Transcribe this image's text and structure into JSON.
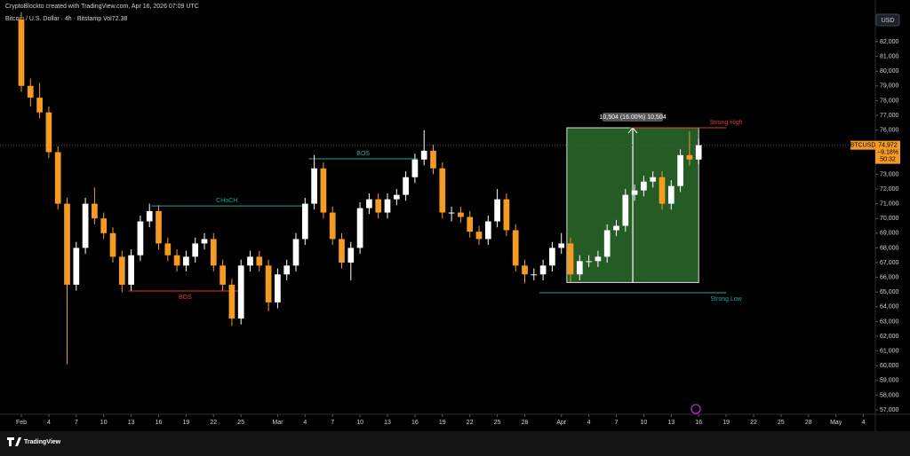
{
  "header": "CryptoBlockto created with TradingView.com, Apr 16, 2026 07:09 UTC",
  "footer_logo": "TradingView",
  "chart_data": {
    "type": "candlestick",
    "title": "Bitcoin / U.S. Dollar · 4h · Bitstamp",
    "subtitle": "Vol72.38",
    "currency": "USD",
    "up_color": "#ffffff",
    "down_color": "#f59a23",
    "grid": false,
    "x": [
      0,
      1,
      2,
      3,
      4,
      5,
      6,
      7,
      8,
      9,
      10,
      11,
      12,
      13,
      14,
      15,
      16,
      17,
      18,
      19,
      20,
      21,
      22,
      23,
      24,
      25,
      26,
      27,
      28,
      29,
      30,
      31,
      32,
      33,
      34,
      35,
      36,
      37,
      38,
      39,
      40,
      41,
      42,
      43,
      44,
      45,
      46,
      47,
      48,
      49,
      50,
      51,
      52,
      53,
      54,
      55,
      56,
      57,
      58,
      59,
      60,
      61,
      62,
      63,
      64,
      65,
      66,
      67,
      68,
      69,
      70,
      71,
      72,
      73,
      74
    ],
    "open": [
      83500,
      79000,
      78200,
      77200,
      74500,
      71000,
      65500,
      68000,
      71000,
      70000,
      69000,
      67400,
      65500,
      67500,
      69800,
      70500,
      68300,
      67500,
      66800,
      67400,
      68300,
      68600,
      66800,
      65500,
      63200,
      66800,
      67400,
      66800,
      64300,
      66200,
      66800,
      68600,
      71000,
      73400,
      70400,
      68600,
      67000,
      68000,
      70700,
      71300,
      70400,
      71300,
      71600,
      72800,
      74000,
      74600,
      73400,
      70400,
      70400,
      70100,
      69100,
      68600,
      69800,
      71300,
      69200,
      66800,
      66200,
      66200,
      66800,
      68000,
      68300,
      66200,
      67100,
      67100,
      67400,
      69200,
      69500,
      71600,
      71900,
      72500,
      72800,
      71000,
      72200,
      74300,
      74000
    ],
    "high": [
      84000,
      79500,
      79200,
      77600,
      74900,
      71400,
      68400,
      71400,
      72100,
      70400,
      69400,
      67800,
      67900,
      70200,
      71000,
      70900,
      68700,
      67900,
      67800,
      68700,
      69000,
      69000,
      67200,
      65900,
      67200,
      67800,
      67800,
      67200,
      66600,
      67200,
      69000,
      71400,
      74300,
      73800,
      70800,
      69000,
      68400,
      71100,
      71700,
      71700,
      71700,
      72000,
      73200,
      74400,
      76000,
      75000,
      73800,
      70800,
      70800,
      70500,
      69500,
      70200,
      72000,
      71700,
      69600,
      67200,
      66600,
      67200,
      68400,
      69000,
      68700,
      67500,
      67500,
      67800,
      69600,
      69900,
      72000,
      72300,
      72900,
      73200,
      73200,
      72600,
      74700,
      75900,
      75400
    ],
    "low": [
      78600,
      77600,
      76800,
      74100,
      70600,
      60100,
      65100,
      67600,
      69600,
      68600,
      67000,
      65000,
      65100,
      67100,
      69400,
      67900,
      67100,
      66400,
      66400,
      67000,
      67900,
      66400,
      65100,
      62700,
      62800,
      66400,
      66400,
      63700,
      63900,
      65800,
      66400,
      68200,
      70600,
      70000,
      68200,
      66600,
      65800,
      67600,
      70300,
      70000,
      70000,
      70900,
      71200,
      72400,
      73600,
      73000,
      70000,
      69800,
      69700,
      68700,
      68200,
      68200,
      69400,
      68800,
      66400,
      65600,
      65800,
      65800,
      66400,
      67600,
      65700,
      65800,
      66700,
      66700,
      67000,
      68800,
      69100,
      71200,
      71500,
      72100,
      70600,
      70600,
      71800,
      73600,
      73700
    ],
    "close": [
      79000,
      78200,
      77200,
      74500,
      71000,
      65500,
      68000,
      71000,
      70000,
      69000,
      67400,
      65500,
      67500,
      69800,
      70500,
      68300,
      67500,
      66800,
      67400,
      68300,
      68600,
      66800,
      65500,
      63200,
      66800,
      67400,
      66800,
      64300,
      66200,
      66800,
      68600,
      71000,
      73400,
      70400,
      68600,
      67000,
      68000,
      70700,
      71300,
      70400,
      71300,
      71600,
      72800,
      74000,
      74600,
      73400,
      70400,
      70400,
      70100,
      69100,
      68600,
      69800,
      71300,
      69200,
      66800,
      66200,
      66200,
      66800,
      68000,
      68300,
      66200,
      67100,
      67100,
      67400,
      69200,
      69500,
      71600,
      71900,
      72500,
      72800,
      71000,
      72200,
      74300,
      74000,
      74972
    ],
    "xlim": [
      -2.33,
      93.3
    ],
    "xticks": [
      {
        "value": 0,
        "label": "Feb"
      },
      {
        "value": 3,
        "label": "4"
      },
      {
        "value": 6,
        "label": "7"
      },
      {
        "value": 9,
        "label": "10"
      },
      {
        "value": 12,
        "label": "13"
      },
      {
        "value": 15,
        "label": "16"
      },
      {
        "value": 18,
        "label": "19"
      },
      {
        "value": 21,
        "label": "22"
      },
      {
        "value": 24,
        "label": "25"
      },
      {
        "value": 28,
        "label": "Mar"
      },
      {
        "value": 31,
        "label": "4"
      },
      {
        "value": 34,
        "label": "7"
      },
      {
        "value": 37,
        "label": "10"
      },
      {
        "value": 40,
        "label": "13"
      },
      {
        "value": 43,
        "label": "16"
      },
      {
        "value": 46,
        "label": "19"
      },
      {
        "value": 49,
        "label": "22"
      },
      {
        "value": 52,
        "label": "25"
      },
      {
        "value": 55,
        "label": "28"
      },
      {
        "value": 59,
        "label": "Apr"
      },
      {
        "value": 62,
        "label": "4"
      },
      {
        "value": 65,
        "label": "7"
      },
      {
        "value": 68,
        "label": "10"
      },
      {
        "value": 71,
        "label": "13"
      },
      {
        "value": 74,
        "label": "16"
      },
      {
        "value": 77,
        "label": "19"
      },
      {
        "value": 80,
        "label": "22"
      },
      {
        "value": 83,
        "label": "25"
      },
      {
        "value": 86,
        "label": "28"
      },
      {
        "value": 89,
        "label": "May"
      },
      {
        "value": 92,
        "label": "4"
      }
    ],
    "ylim": [
      56700,
      84350
    ],
    "yticks": [
      {
        "value": 57000,
        "label": "57,000"
      },
      {
        "value": 58000,
        "label": "58,000"
      },
      {
        "value": 59000,
        "label": "59,000"
      },
      {
        "value": 60000,
        "label": "60,000"
      },
      {
        "value": 61000,
        "label": "61,000"
      },
      {
        "value": 62000,
        "label": "62,000"
      },
      {
        "value": 63000,
        "label": "63,000"
      },
      {
        "value": 64000,
        "label": "64,000"
      },
      {
        "value": 65000,
        "label": "65,000"
      },
      {
        "value": 66000,
        "label": "66,000"
      },
      {
        "value": 67000,
        "label": "67,000"
      },
      {
        "value": 68000,
        "label": "68,000"
      },
      {
        "value": 69000,
        "label": "69,000"
      },
      {
        "value": 70000,
        "label": "70,000"
      },
      {
        "value": 71000,
        "label": "71,000"
      },
      {
        "value": 72000,
        "label": "72,000"
      },
      {
        "value": 73000,
        "label": "73,000"
      },
      {
        "value": 74000,
        "label": "74,000"
      },
      {
        "value": 75000,
        "label": "75,000"
      },
      {
        "value": 76000,
        "label": "76,000"
      },
      {
        "value": 77000,
        "label": "77,000"
      },
      {
        "value": 78000,
        "label": "78,000"
      },
      {
        "value": 79000,
        "label": "79,000"
      },
      {
        "value": 80000,
        "label": "80,000"
      },
      {
        "value": 81000,
        "label": "81,000"
      },
      {
        "value": 82000,
        "label": "82,000"
      }
    ],
    "last_price": {
      "value": 74972,
      "label": "74,972"
    },
    "symbol": "BTCUSD",
    "change": "−9.18%",
    "countdown": "50:32",
    "measure": {
      "label": "10,504 (16.00%) 10,504",
      "x": [
        59.6,
        74
      ],
      "y": [
        65650,
        76154
      ]
    },
    "structure_lines": [
      {
        "label": "CHoCH",
        "color": "#26a69a",
        "price": 70850,
        "x": [
          14.2,
          30.7
        ]
      },
      {
        "label": "BOS",
        "color": "#26a69a",
        "price": 74050,
        "x": [
          31.4,
          43.3
        ]
      },
      {
        "label": "BOS",
        "color": "#e53935",
        "price": 65070,
        "x": [
          11.7,
          24.1
        ]
      },
      {
        "label": "Strong High",
        "color": "#e53935",
        "price": 76154,
        "x": [
          66.5,
          77
        ]
      },
      {
        "label": "Strong Low",
        "color": "#26a69a",
        "price": 64950,
        "x": [
          56.6,
          77
        ]
      }
    ]
  }
}
